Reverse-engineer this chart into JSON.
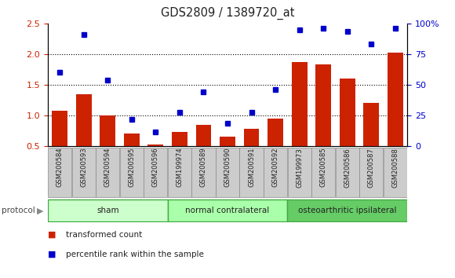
{
  "title": "GDS2809 / 1389720_at",
  "categories": [
    "GSM200584",
    "GSM200593",
    "GSM200594",
    "GSM200595",
    "GSM200596",
    "GSM199974",
    "GSM200589",
    "GSM200590",
    "GSM200591",
    "GSM200592",
    "GSM199973",
    "GSM200585",
    "GSM200586",
    "GSM200587",
    "GSM200588"
  ],
  "red_values": [
    1.08,
    1.35,
    1.0,
    0.7,
    0.53,
    0.73,
    0.84,
    0.65,
    0.78,
    0.95,
    1.87,
    1.83,
    1.6,
    1.2,
    2.02
  ],
  "blue_values": [
    1.7,
    2.32,
    1.58,
    0.93,
    0.73,
    1.05,
    1.38,
    0.87,
    1.05,
    1.42,
    2.4,
    2.43,
    2.37,
    2.17,
    2.43
  ],
  "ylim_left": [
    0.5,
    2.5
  ],
  "yticks_left": [
    0.5,
    1.0,
    1.5,
    2.0,
    2.5
  ],
  "yticks_right": [
    0,
    25,
    50,
    75,
    100
  ],
  "ytick_labels_right": [
    "0",
    "25",
    "50",
    "75",
    "100%"
  ],
  "groups": [
    {
      "label": "sham",
      "start": 0,
      "end": 4
    },
    {
      "label": "normal contralateral",
      "start": 5,
      "end": 9
    },
    {
      "label": "osteoarthritic ipsilateral",
      "start": 10,
      "end": 14
    }
  ],
  "group_colors": [
    "#ccffcc",
    "#aaffaa",
    "#66cc66"
  ],
  "group_border_color": "#44aa44",
  "protocol_label": "protocol",
  "red_bar_color": "#cc2200",
  "blue_marker_color": "#0000cc",
  "tick_label_color_left": "#cc2200",
  "tick_label_color_right": "#0000cc",
  "legend_red": "transformed count",
  "legend_blue": "percentile rank within the sample",
  "label_box_color": "#cccccc",
  "label_box_border": "#888888"
}
